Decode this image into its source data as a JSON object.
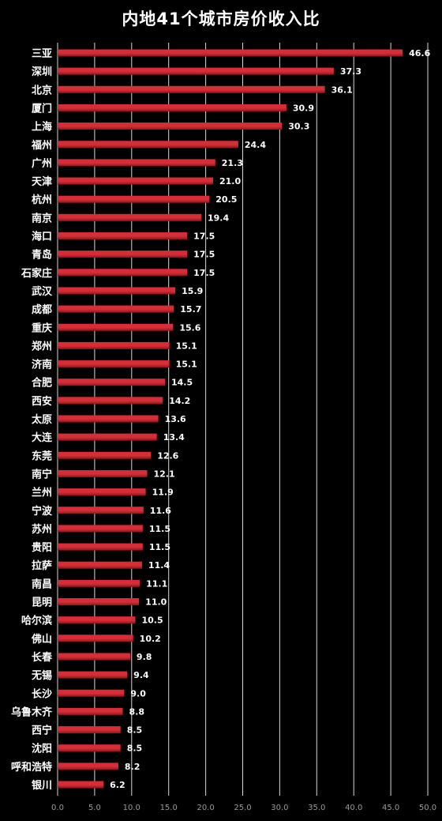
{
  "chart_data": {
    "type": "bar",
    "orientation": "horizontal",
    "title": "内地41个城市房价收入比",
    "xlim": [
      0,
      50
    ],
    "xticks": [
      "0.0",
      "5.0",
      "10.0",
      "15.0",
      "20.0",
      "25.0",
      "30.0",
      "35.0",
      "40.0",
      "45.0",
      "50.0"
    ],
    "grid": "vertical",
    "colors": {
      "background": "#000000",
      "bar": "#d62d36",
      "bar_dark": "#8f141b",
      "grid": "#d9d9d9",
      "text": "#ffffff"
    },
    "categories": [
      "三亚",
      "深圳",
      "北京",
      "厦门",
      "上海",
      "福州",
      "广州",
      "天津",
      "杭州",
      "南京",
      "海口",
      "青岛",
      "石家庄",
      "武汉",
      "成都",
      "重庆",
      "郑州",
      "济南",
      "合肥",
      "西安",
      "太原",
      "大连",
      "东莞",
      "南宁",
      "兰州",
      "宁波",
      "苏州",
      "贵阳",
      "拉萨",
      "南昌",
      "昆明",
      "哈尔滨",
      "佛山",
      "长春",
      "无锡",
      "长沙",
      "乌鲁木齐",
      "西宁",
      "沈阳",
      "呼和浩特",
      "银川"
    ],
    "values": [
      46.6,
      37.3,
      36.1,
      30.9,
      30.3,
      24.4,
      21.3,
      21.0,
      20.5,
      19.4,
      17.5,
      17.5,
      17.5,
      15.9,
      15.7,
      15.6,
      15.1,
      15.1,
      14.5,
      14.2,
      13.6,
      13.4,
      12.6,
      12.1,
      11.9,
      11.6,
      11.5,
      11.5,
      11.4,
      11.1,
      11.0,
      10.5,
      10.2,
      9.8,
      9.4,
      9.0,
      8.8,
      8.5,
      8.5,
      8.2,
      6.2
    ],
    "value_labels": [
      "46.6",
      "37.3",
      "36.1",
      "30.9",
      "30.3",
      "24.4",
      "21.3",
      "21.0",
      "20.5",
      "19.4",
      "17.5",
      "17.5",
      "17.5",
      "15.9",
      "15.7",
      "15.6",
      "15.1",
      "15.1",
      "14.5",
      "14.2",
      "13.6",
      "13.4",
      "12.6",
      "12.1",
      "11.9",
      "11.6",
      "11.5",
      "11.5",
      "11.4",
      "11.1",
      "11.0",
      "10.5",
      "10.2",
      "9.8",
      "9.4",
      "9.0",
      "8.8",
      "8.5",
      "8.5",
      "8.2",
      "6.2"
    ]
  }
}
